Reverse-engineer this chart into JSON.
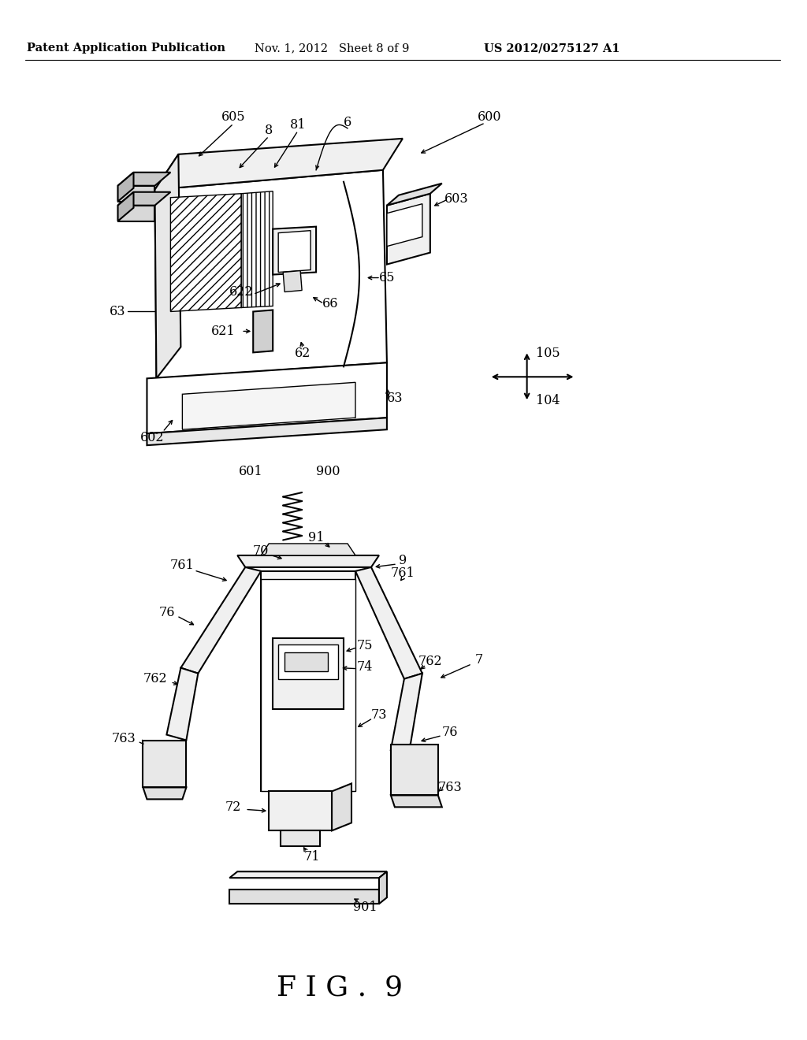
{
  "bg_color": "#ffffff",
  "header_left": "Patent Application Publication",
  "header_mid": "Nov. 1, 2012   Sheet 8 of 9",
  "header_right": "US 2012/0275127 A1",
  "figure_label": "F I G .  9",
  "fig_label_fontsize": 26,
  "header_fontsize": 10.5,
  "label_fontsize": 11.5,
  "lw_main": 1.5,
  "lw_thin": 1.0
}
